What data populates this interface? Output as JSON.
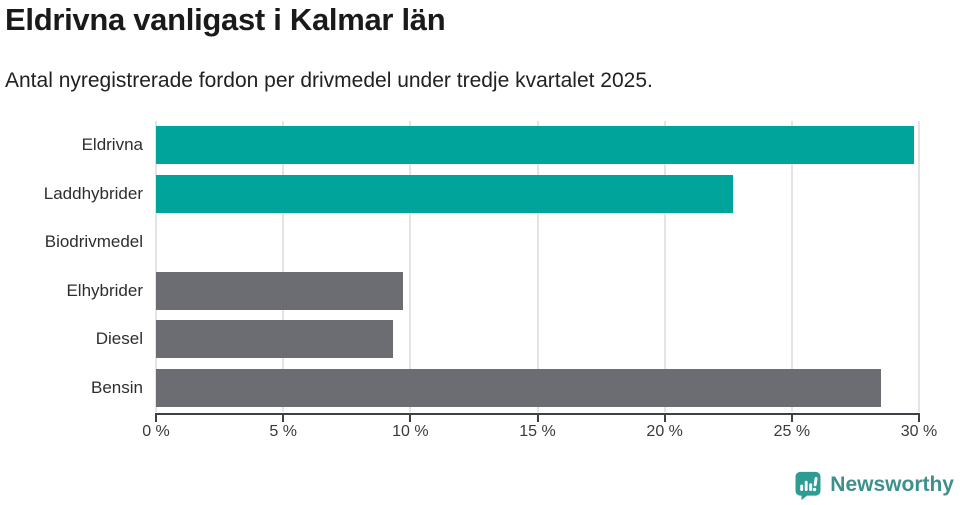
{
  "header": {
    "title": "Eldrivna vanligast i Kalmar län",
    "subtitle": "Antal nyregistrerade fordon per drivmedel under tredje kvartalet 2025."
  },
  "chart_data": {
    "type": "bar",
    "orientation": "horizontal",
    "title": "Eldrivna vanligast i Kalmar län",
    "subtitle": "Antal nyregistrerade fordon per drivmedel under tredje kvartalet 2025.",
    "categories": [
      "Eldrivna",
      "Laddhybrider",
      "Biodrivmedel",
      "Elhybrider",
      "Diesel",
      "Bensin"
    ],
    "values": [
      29.8,
      22.7,
      0,
      9.7,
      9.3,
      28.5
    ],
    "bar_colors": [
      "#00a49a",
      "#00a49a",
      "#6c6c73",
      "#6c6c73",
      "#6c6c73",
      "#6c6c73"
    ],
    "xlim": [
      0,
      30
    ],
    "x_ticks": [
      0,
      5,
      10,
      15,
      20,
      25,
      30
    ],
    "x_tick_labels": [
      "0 %",
      "5 %",
      "10 %",
      "15 %",
      "20 %",
      "25 %",
      "30 %"
    ],
    "grid": true,
    "legend": false,
    "xlabel": "",
    "ylabel": ""
  },
  "footer": {
    "brand": "Newsworthy"
  },
  "colors": {
    "accent_teal": "#00a49a",
    "bar_gray": "#6c6c73",
    "gridline": "#e4e4e7",
    "axis_line": "#3f3f45",
    "title_text": "#1a1a1a",
    "label_text": "#2e2e2e",
    "brand_teal": "#3e908d",
    "logo_bubble_teal": "#2e9c93"
  }
}
